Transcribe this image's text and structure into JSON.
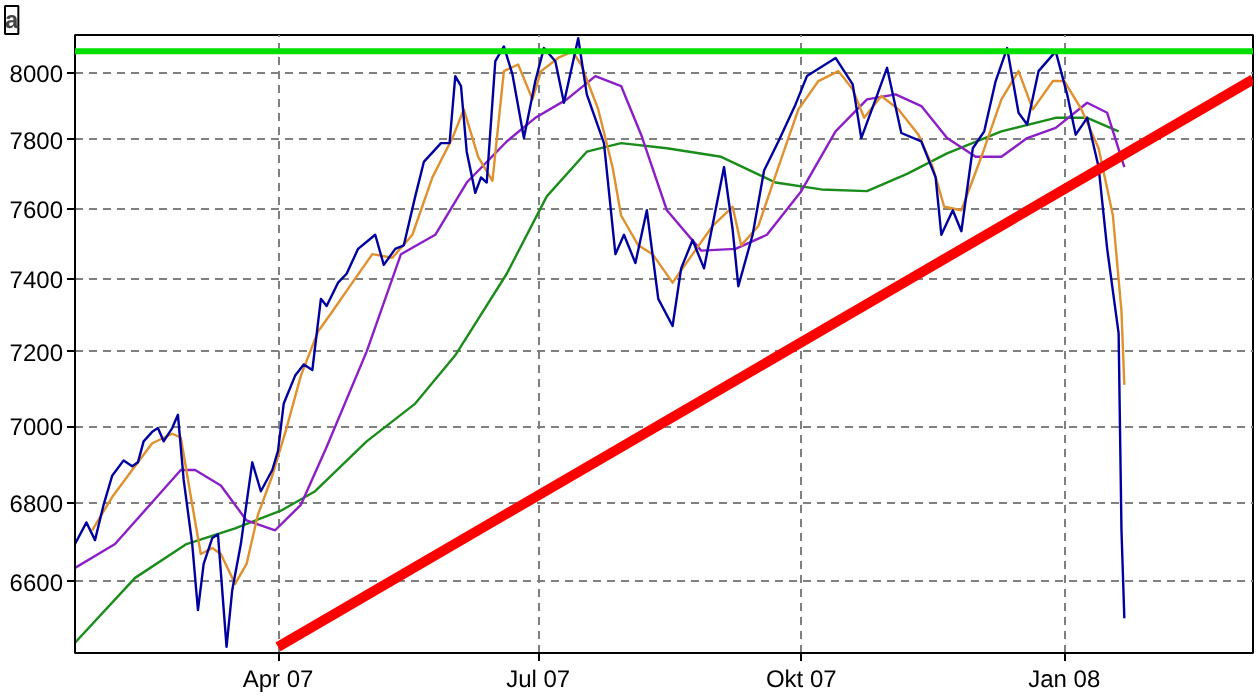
{
  "chart_data": {
    "type": "line",
    "log": "y",
    "grid": true,
    "marker": "none",
    "line_style": "solid",
    "annotations": [
      "a"
    ],
    "xlim": [
      "2007-01-20",
      "2008-03-07"
    ],
    "xticks": [
      {
        "value": "2007-04-01",
        "label": "Apr 07"
      },
      {
        "value": "2007-07-01",
        "label": "Jul 07"
      },
      {
        "value": "2007-10-01",
        "label": "Okt 07"
      },
      {
        "value": "2008-01-01",
        "label": "Jan 08"
      }
    ],
    "ylim": [
      6425,
      8115
    ],
    "yticks": [
      6600,
      6800,
      7000,
      7200,
      7400,
      7600,
      7800,
      8000
    ],
    "ref_lines": [
      {
        "axis": "y",
        "value": 8065,
        "label": null,
        "color": "#00e000",
        "line_style": "solid"
      }
    ],
    "series": [
      {
        "color": "#1a8c1a",
        "x": [
          "2007-01-20",
          "2007-02-10",
          "2007-02-28",
          "2007-03-17",
          "2007-04-02",
          "2007-04-14",
          "2007-05-02",
          "2007-05-19",
          "2007-06-02",
          "2007-06-20",
          "2007-07-04",
          "2007-07-18",
          "2007-07-30",
          "2007-08-15",
          "2007-09-03",
          "2007-09-22",
          "2007-10-08",
          "2007-10-24",
          "2007-11-07",
          "2007-11-21",
          "2007-12-10",
          "2007-12-29",
          "2008-01-09",
          "2008-01-20"
        ],
        "values": [
          6450,
          6610,
          6695,
          6735,
          6780,
          6830,
          6960,
          7060,
          7190,
          7415,
          7635,
          7765,
          7790,
          7775,
          7750,
          7675,
          7655,
          7650,
          7700,
          7760,
          7825,
          7865,
          7865,
          7825
        ]
      },
      {
        "color": "#8c1ec8",
        "x": [
          "2007-01-20",
          "2007-02-03",
          "2007-02-17",
          "2007-02-26",
          "2007-03-03",
          "2007-03-12",
          "2007-03-21",
          "2007-03-31",
          "2007-04-09",
          "2007-04-18",
          "2007-05-02",
          "2007-05-14",
          "2007-05-26",
          "2007-06-06",
          "2007-06-20",
          "2007-06-30",
          "2007-07-11",
          "2007-07-21",
          "2007-07-30",
          "2007-08-06",
          "2007-08-15",
          "2007-08-27",
          "2007-09-08",
          "2007-09-19",
          "2007-10-01",
          "2007-10-13",
          "2007-10-24",
          "2007-11-03",
          "2007-11-12",
          "2007-11-21",
          "2007-12-01",
          "2007-12-10",
          "2007-12-19",
          "2007-12-29",
          "2008-01-09",
          "2008-01-16",
          "2008-01-22"
        ],
        "values": [
          6635,
          6695,
          6810,
          6885,
          6885,
          6845,
          6755,
          6730,
          6795,
          6945,
          7200,
          7470,
          7525,
          7675,
          7795,
          7865,
          7920,
          7990,
          7960,
          7815,
          7595,
          7480,
          7485,
          7525,
          7650,
          7825,
          7920,
          7935,
          7900,
          7805,
          7750,
          7750,
          7805,
          7835,
          7910,
          7880,
          7720
        ]
      },
      {
        "color": "#e0902c",
        "x": [
          "2007-01-26",
          "2007-02-02",
          "2007-02-09",
          "2007-02-16",
          "2007-02-23",
          "2007-02-26",
          "2007-03-02",
          "2007-03-05",
          "2007-03-09",
          "2007-03-12",
          "2007-03-17",
          "2007-03-21",
          "2007-03-25",
          "2007-03-30",
          "2007-04-04",
          "2007-04-09",
          "2007-04-15",
          "2007-04-20",
          "2007-04-27",
          "2007-05-04",
          "2007-05-11",
          "2007-05-18",
          "2007-05-25",
          "2007-06-01",
          "2007-06-05",
          "2007-06-10",
          "2007-06-15",
          "2007-06-19",
          "2007-06-24",
          "2007-06-29",
          "2007-07-02",
          "2007-07-08",
          "2007-07-13",
          "2007-07-16",
          "2007-07-22",
          "2007-07-27",
          "2007-07-30",
          "2007-08-05",
          "2007-08-10",
          "2007-08-17",
          "2007-08-24",
          "2007-08-31",
          "2007-09-07",
          "2007-09-10",
          "2007-09-16",
          "2007-09-23",
          "2007-09-30",
          "2007-10-07",
          "2007-10-14",
          "2007-10-19",
          "2007-10-23",
          "2007-10-29",
          "2007-11-04",
          "2007-11-11",
          "2007-11-16",
          "2007-11-20",
          "2007-11-26",
          "2007-12-03",
          "2007-12-10",
          "2007-12-16",
          "2007-12-21",
          "2007-12-28",
          "2008-01-01",
          "2008-01-07",
          "2008-01-13",
          "2008-01-18",
          "2008-01-21",
          "2008-01-22"
        ],
        "values": [
          6730,
          6815,
          6885,
          6955,
          6980,
          6970,
          6795,
          6670,
          6685,
          6670,
          6595,
          6645,
          6770,
          6870,
          6995,
          7135,
          7255,
          7310,
          7390,
          7470,
          7460,
          7525,
          7690,
          7805,
          7890,
          7750,
          7680,
          8005,
          8025,
          7920,
          8005,
          8045,
          8065,
          8025,
          7890,
          7720,
          7580,
          7495,
          7470,
          7390,
          7470,
          7550,
          7605,
          7495,
          7550,
          7720,
          7890,
          7975,
          8005,
          7950,
          7865,
          7930,
          7890,
          7815,
          7720,
          7605,
          7595,
          7750,
          7920,
          8005,
          7890,
          7975,
          7975,
          7890,
          7775,
          7580,
          7310,
          7110
        ]
      },
      {
        "color": "#0000a0",
        "x": [
          "2007-01-20",
          "2007-01-24",
          "2007-01-27",
          "2007-01-30",
          "2007-02-02",
          "2007-02-06",
          "2007-02-09",
          "2007-02-11",
          "2007-02-13",
          "2007-02-16",
          "2007-02-18",
          "2007-02-20",
          "2007-02-23",
          "2007-02-25",
          "2007-02-27",
          "2007-03-02",
          "2007-03-04",
          "2007-03-06",
          "2007-03-09",
          "2007-03-11",
          "2007-03-14",
          "2007-03-16",
          "2007-03-19",
          "2007-03-23",
          "2007-03-26",
          "2007-03-30",
          "2007-04-01",
          "2007-04-03",
          "2007-04-07",
          "2007-04-10",
          "2007-04-13",
          "2007-04-16",
          "2007-04-18",
          "2007-04-22",
          "2007-04-25",
          "2007-04-29",
          "2007-05-05",
          "2007-05-08",
          "2007-05-12",
          "2007-05-15",
          "2007-05-19",
          "2007-05-22",
          "2007-05-28",
          "2007-05-31",
          "2007-06-02",
          "2007-06-04",
          "2007-06-06",
          "2007-06-09",
          "2007-06-11",
          "2007-06-13",
          "2007-06-16",
          "2007-06-19",
          "2007-06-22",
          "2007-06-26",
          "2007-06-30",
          "2007-07-03",
          "2007-07-07",
          "2007-07-10",
          "2007-07-15",
          "2007-07-18",
          "2007-07-24",
          "2007-07-28",
          "2007-07-31",
          "2007-08-04",
          "2007-08-08",
          "2007-08-12",
          "2007-08-17",
          "2007-08-20",
          "2007-08-24",
          "2007-08-28",
          "2007-09-04",
          "2007-09-07",
          "2007-09-09",
          "2007-09-14",
          "2007-09-18",
          "2007-09-23",
          "2007-09-29",
          "2007-10-03",
          "2007-10-13",
          "2007-10-19",
          "2007-10-22",
          "2007-10-27",
          "2007-10-31",
          "2007-11-05",
          "2007-11-12",
          "2007-11-17",
          "2007-11-19",
          "2007-11-23",
          "2007-11-26",
          "2007-11-30",
          "2007-12-04",
          "2007-12-08",
          "2007-12-12",
          "2007-12-16",
          "2007-12-19",
          "2007-12-23",
          "2007-12-29",
          "2008-01-02",
          "2008-01-05",
          "2008-01-09",
          "2008-01-13",
          "2008-01-16",
          "2008-01-20",
          "2008-01-21",
          "2008-01-22"
        ],
        "values": [
          6695,
          6750,
          6705,
          6795,
          6870,
          6910,
          6895,
          6905,
          6960,
          6985,
          6995,
          6960,
          6995,
          7030,
          6860,
          6695,
          6530,
          6645,
          6710,
          6720,
          6440,
          6580,
          6695,
          6905,
          6830,
          6885,
          6935,
          7060,
          7135,
          7165,
          7150,
          7345,
          7325,
          7390,
          7415,
          7485,
          7525,
          7440,
          7485,
          7495,
          7635,
          7735,
          7790,
          7790,
          7990,
          7960,
          7765,
          7645,
          7690,
          7675,
          8035,
          8080,
          7995,
          7805,
          7975,
          8075,
          8035,
          7910,
          8105,
          7935,
          7790,
          7470,
          7525,
          7445,
          7595,
          7345,
          7270,
          7430,
          7510,
          7430,
          7720,
          7540,
          7380,
          7525,
          7710,
          7795,
          7905,
          7990,
          8045,
          7965,
          7805,
          7920,
          8015,
          7820,
          7795,
          7690,
          7525,
          7595,
          7535,
          7775,
          7825,
          7975,
          8075,
          7880,
          7845,
          8005,
          8065,
          7935,
          7815,
          7865,
          7720,
          7485,
          7250,
          6730,
          6510
        ]
      },
      {
        "type": "line",
        "color": "#ff0000",
        "x": [
          "2007-04-01",
          "2008-03-07"
        ],
        "values": [
          6440,
          7980
        ]
      }
    ]
  }
}
